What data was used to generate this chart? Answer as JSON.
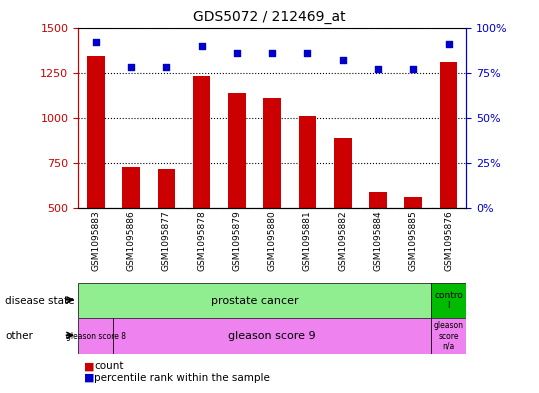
{
  "title": "GDS5072 / 212469_at",
  "samples": [
    "GSM1095883",
    "GSM1095886",
    "GSM1095877",
    "GSM1095878",
    "GSM1095879",
    "GSM1095880",
    "GSM1095881",
    "GSM1095882",
    "GSM1095884",
    "GSM1095885",
    "GSM1095876"
  ],
  "counts": [
    1340,
    730,
    720,
    1230,
    1140,
    1110,
    1010,
    890,
    590,
    560,
    1310
  ],
  "percentile_ranks": [
    92,
    78,
    78,
    90,
    86,
    86,
    86,
    82,
    77,
    77,
    91
  ],
  "ylim_left": [
    500,
    1500
  ],
  "ylim_right": [
    0,
    100
  ],
  "yticks_left": [
    500,
    750,
    1000,
    1250,
    1500
  ],
  "yticks_right": [
    0,
    25,
    50,
    75,
    100
  ],
  "bar_color": "#cc0000",
  "dot_color": "#0000cc",
  "disease_state_label_main": "prostate cancer",
  "disease_state_label_ctrl": "contro\nl",
  "disease_state_color_main": "#90ee90",
  "disease_state_color_ctrl": "#00bb00",
  "other_label_8": "gleason score 8",
  "other_label_9": "gleason score 9",
  "other_label_na": "gleason\nscore\nn/a",
  "other_color": "#ee82ee",
  "background_color": "#ffffff",
  "tick_area_color": "#c8c8c8",
  "left_axis_color": "#cc0000",
  "right_axis_color": "#0000cc",
  "bar_width": 0.5
}
